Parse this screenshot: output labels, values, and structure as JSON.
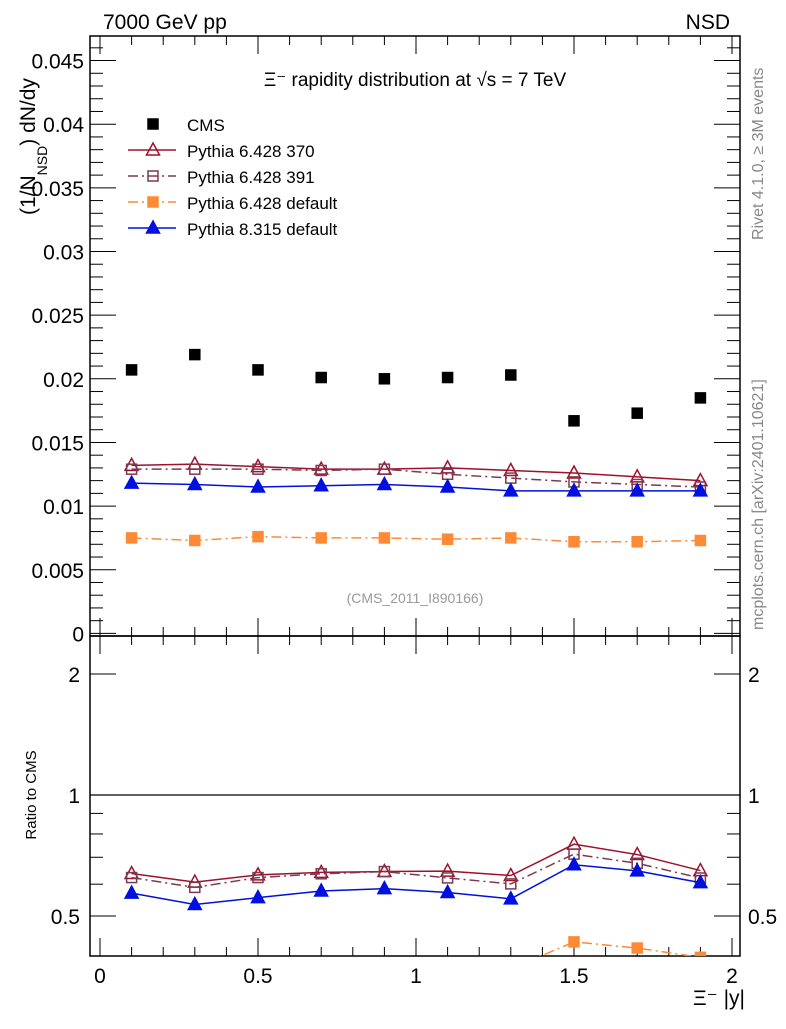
{
  "chart_data": {
    "type": "line",
    "header_left": "7000 GeV pp",
    "header_right": "NSD",
    "title": "Ξ⁻ rapidity distribution at √s = 7 TeV",
    "ylabel": "(1/N_NSD) dN/dy",
    "ylabel_main": "(1/N",
    "ylabel_sub": "NSD",
    "ylabel_end": ") dN/dy",
    "ratio_ylabel": "Ratio to CMS",
    "xlabel": "Ξ⁻ |y|",
    "watermark": "(CMS_2011_I890166)",
    "side_text_top": "Rivet 4.1.0, ≥ 3M events",
    "side_text_bottom": "mcplots.cern.ch [arXiv:2401.10621]",
    "xlim": [
      0,
      2.05
    ],
    "ylim": [
      0,
      0.047
    ],
    "ratio_ylim": [
      0.4,
      2.48
    ],
    "ratio_scale": "log",
    "x_ticks": [
      "0",
      "0.5",
      "1",
      "1.5",
      "2"
    ],
    "y_ticks": [
      "0",
      "0.005",
      "0.01",
      "0.015",
      "0.02",
      "0.025",
      "0.03",
      "0.035",
      "0.04",
      "0.045"
    ],
    "ratio_ticks": [
      "0.5",
      "1",
      "2"
    ],
    "legend_position": "top-left",
    "x": [
      0.1,
      0.3,
      0.5,
      0.7,
      0.9,
      1.1,
      1.3,
      1.5,
      1.7,
      1.9
    ],
    "series": [
      {
        "name": "CMS",
        "color": "#000000",
        "marker": "square-filled",
        "line": "none",
        "values": [
          0.0207,
          0.0219,
          0.0207,
          0.0201,
          0.02,
          0.0201,
          0.0203,
          0.0167,
          0.0173,
          0.0185
        ]
      },
      {
        "name": "Pythia 6.428 370",
        "color": "#a0102a",
        "marker": "triangle-open",
        "line": "solid",
        "values": [
          0.0132,
          0.0133,
          0.0131,
          0.0129,
          0.0129,
          0.013,
          0.0128,
          0.0126,
          0.0123,
          0.012
        ]
      },
      {
        "name": "Pythia 6.428 391",
        "color": "#7a3a50",
        "marker": "square-open",
        "line": "dashdot",
        "values": [
          0.0129,
          0.0129,
          0.0129,
          0.0128,
          0.0129,
          0.0125,
          0.0122,
          0.0119,
          0.0117,
          0.0115
        ]
      },
      {
        "name": "Pythia 6.428 default",
        "color": "#ff8a35",
        "marker": "square-filled",
        "line": "dashdot",
        "values": [
          0.0075,
          0.0073,
          0.0076,
          0.0075,
          0.0075,
          0.0074,
          0.0075,
          0.0072,
          0.0072,
          0.0073
        ]
      },
      {
        "name": "Pythia 8.315 default",
        "color": "#0010e0",
        "marker": "triangle-filled",
        "line": "solid",
        "values": [
          0.0118,
          0.0117,
          0.0115,
          0.0116,
          0.0117,
          0.0115,
          0.0112,
          0.0112,
          0.0112,
          0.0112
        ]
      }
    ]
  }
}
